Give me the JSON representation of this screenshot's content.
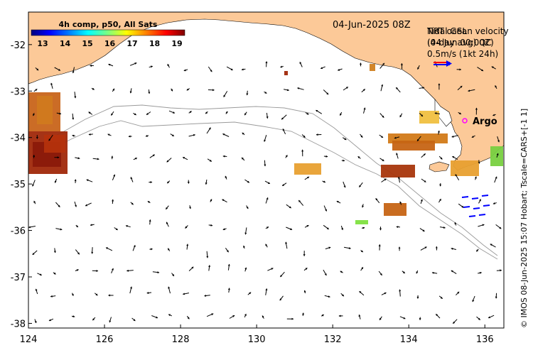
{
  "title": {
    "colorbar_title": "4h comp, p50, All Sats",
    "date": "04-Jun-2025 08Z",
    "credit": "© IMOS 08-Jun-2025 15:07 Hobart; Tscale=CARS+[-1 1]"
  },
  "legend": {
    "line1a": "NRT ocean velocity",
    "line1b": "Tidal GSL",
    "line2a": "(04 Jun 00:00Z)",
    "line2b": "(4-day avg) QC",
    "line3": "0.5m/s (1kt 24h)",
    "argo_label": "Argo",
    "arrow_colors": [
      "#ff0000",
      "#0000ff"
    ]
  },
  "colorbar": {
    "ticks": [
      "13",
      "14",
      "15",
      "16",
      "17",
      "18",
      "19"
    ],
    "colors": [
      "#00007f",
      "#0000ff",
      "#007fff",
      "#00ffff",
      "#7fff7f",
      "#ffff00",
      "#ff7f00",
      "#ff0000",
      "#7f0000"
    ]
  },
  "axes": {
    "x_ticks": [
      "124",
      "126",
      "128",
      "130",
      "132",
      "134",
      "136"
    ],
    "y_ticks": [
      "-32",
      "-33",
      "-34",
      "-35",
      "-36",
      "-37",
      "-38"
    ],
    "x_range": [
      124,
      136.5
    ],
    "y_range": [
      -38.1,
      -31.3
    ]
  },
  "colors": {
    "land": "#fcc998",
    "ocean": "#ffffff",
    "contour": "#9a9a9a"
  }
}
